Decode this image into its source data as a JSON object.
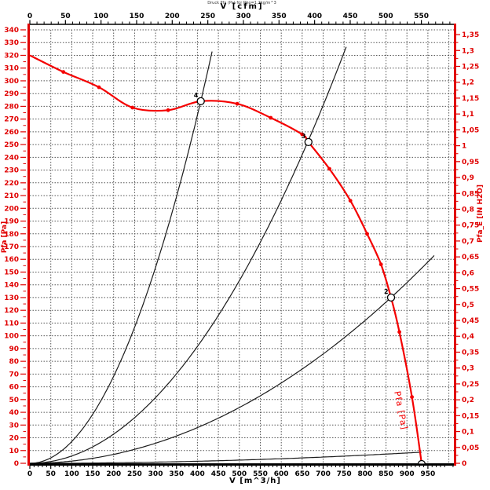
{
  "colors": {
    "curve_red": "#f40000",
    "axis_red": "#e00000",
    "black": "#000000",
    "grid_gray": "#555555",
    "system_curve": "#1c1c1c"
  },
  "chart_data": {
    "type": "line",
    "title": "Druck Pfa (Pa) für Rho=1,2kg/m^3",
    "axes": {
      "top": {
        "label": "V [cfm]",
        "min": 0,
        "max_label": 550,
        "tick_step": 50,
        "minor_step": 10,
        "unit_to_m3h": 1.699
      },
      "bottom": {
        "label": "V [m^3/h]",
        "min": 0,
        "max": 1012,
        "max_label": 950,
        "tick_step": 50,
        "minor_step": 10
      },
      "left": {
        "label": "Pfa [Pa]",
        "min": 0,
        "max": 340,
        "tick_step": 10,
        "minor_step": 5
      },
      "right": {
        "label": "Pfa_E [IN H2O]",
        "min": 0,
        "max_label": 1.35,
        "tick_step": 0.05,
        "minor_step": 0.025,
        "unit_to_pa": 249.089,
        "decimal": "comma"
      }
    },
    "grid": {
      "x_step_m3h": 50,
      "y_step_pa": 10
    },
    "fan_curve": {
      "label": "Pfa [Pa]",
      "points_v_p": [
        [
          0,
          320
        ],
        [
          80,
          307
        ],
        [
          165,
          295
        ],
        [
          245,
          279
        ],
        [
          330,
          277
        ],
        [
          408,
          284
        ],
        [
          495,
          282
        ],
        [
          575,
          271
        ],
        [
          650,
          258
        ],
        [
          665,
          252
        ],
        [
          715,
          231
        ],
        [
          765,
          206
        ],
        [
          805,
          180
        ],
        [
          838,
          156
        ],
        [
          862,
          130
        ],
        [
          882,
          103
        ],
        [
          912,
          52
        ],
        [
          935,
          0
        ]
      ],
      "dot_markers_v_p": [
        [
          80,
          307
        ],
        [
          165,
          295
        ],
        [
          245,
          279
        ],
        [
          330,
          277
        ],
        [
          495,
          282
        ],
        [
          575,
          271
        ],
        [
          650,
          258
        ],
        [
          715,
          231
        ],
        [
          765,
          206
        ],
        [
          805,
          180
        ],
        [
          838,
          156
        ],
        [
          882,
          103
        ],
        [
          912,
          52
        ]
      ]
    },
    "system_curves": [
      {
        "coeff_k": 0.001707,
        "v_end": 435
      },
      {
        "coeff_k": 0.000573,
        "v_end": 755
      },
      {
        "coeff_k": 0.000175,
        "v_end": 969
      },
      {
        "coeff_k": 1e-05,
        "v_end": 935
      }
    ],
    "operating_points": [
      {
        "label": "4",
        "v_m3h": 408,
        "p_pa": 284,
        "marker": "circle"
      },
      {
        "label": "3",
        "v_m3h": 665,
        "p_pa": 252,
        "marker": "circle"
      },
      {
        "label": "2",
        "v_m3h": 862,
        "p_pa": 130,
        "marker": "circle"
      },
      {
        "label": "",
        "v_m3h": 935,
        "p_pa": 0,
        "marker": "half-circle"
      }
    ]
  }
}
